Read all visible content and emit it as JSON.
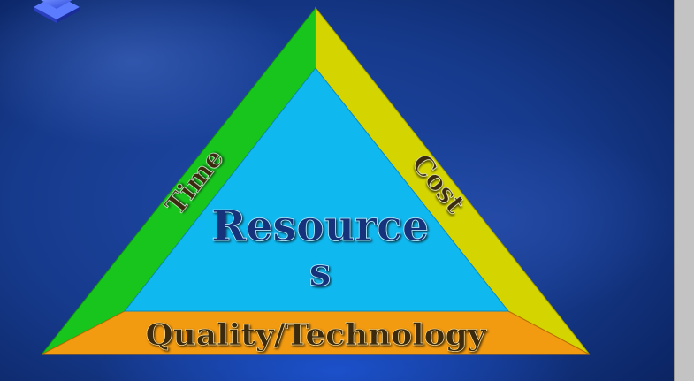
{
  "diagram": {
    "center_label_line1": "Resource",
    "center_label_line2": "s",
    "left_side_label": "Time",
    "right_side_label": "Cost",
    "bottom_side_label": "Quality/Technology"
  },
  "colors": {
    "slide_background": "#163a8c",
    "inner_triangle": "#10b8f0",
    "left_band": "#17c51d",
    "right_band": "#d4d400",
    "bottom_band": "#f29a10",
    "label_text_dark": "#3a2a10",
    "center_text": "#12337a"
  }
}
